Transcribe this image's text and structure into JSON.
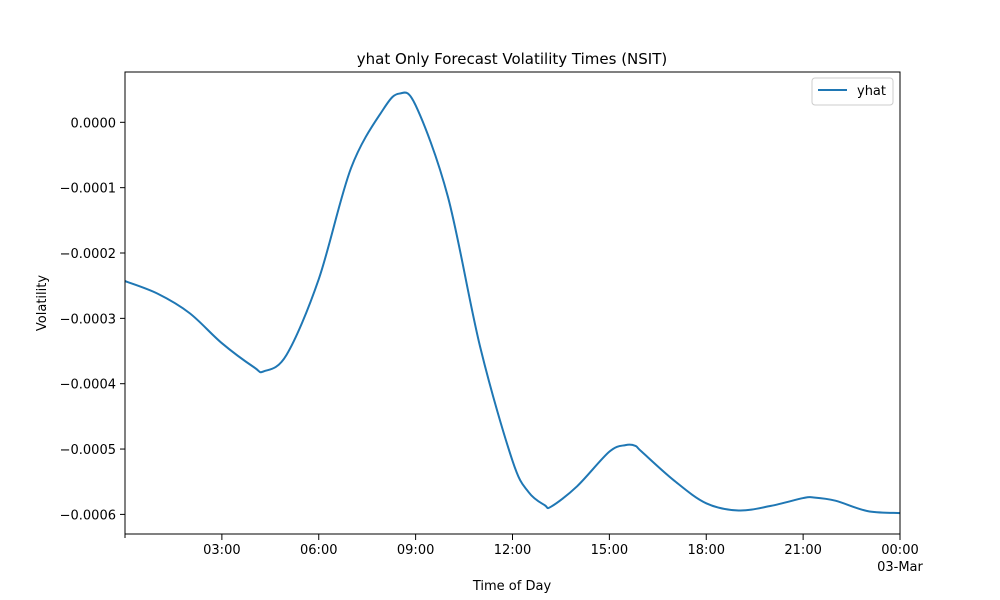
{
  "chart_data": {
    "type": "line",
    "title": "yhat Only Forecast Volatility Times (NSIT)",
    "xlabel": "Time of Day",
    "ylabel": "Volatility",
    "x_unit": "hours",
    "xlim": [
      0,
      24
    ],
    "ylim": [
      -0.00063,
      7.7e-05
    ],
    "x_ticks": [
      {
        "x": 3,
        "label": "03:00"
      },
      {
        "x": 6,
        "label": "06:00"
      },
      {
        "x": 9,
        "label": "09:00"
      },
      {
        "x": 12,
        "label": "12:00"
      },
      {
        "x": 15,
        "label": "15:00"
      },
      {
        "x": 18,
        "label": "18:00"
      },
      {
        "x": 21,
        "label": "21:00"
      },
      {
        "x": 24,
        "label": "00:00",
        "sublabel": "03-Mar"
      }
    ],
    "y_ticks": [
      {
        "y": 0.0,
        "label": "0.0000"
      },
      {
        "y": -0.0001,
        "label": "−0.0001"
      },
      {
        "y": -0.0002,
        "label": "−0.0002"
      },
      {
        "y": -0.0003,
        "label": "−0.0003"
      },
      {
        "y": -0.0004,
        "label": "−0.0004"
      },
      {
        "y": -0.0005,
        "label": "−0.0005"
      },
      {
        "y": -0.0006,
        "label": "−0.0006"
      }
    ],
    "grid": false,
    "legend": {
      "placement": "top-right"
    },
    "series": [
      {
        "name": "yhat",
        "color": "#1f77b4",
        "x": [
          0,
          1,
          2,
          3,
          4,
          4.3,
          5,
          6,
          7,
          8,
          8.5,
          9,
          10,
          11,
          12,
          12.5,
          13,
          13.2,
          14,
          15,
          15.5,
          15.8,
          16,
          17,
          18,
          19,
          20,
          21,
          21.3,
          22,
          23,
          24
        ],
        "y": [
          -0.000243,
          -0.000262,
          -0.000292,
          -0.000338,
          -0.000375,
          -0.000381,
          -0.000356,
          -0.00024,
          -7e-05,
          2e-05,
          4.4e-05,
          2.6e-05,
          -0.000114,
          -0.000344,
          -0.000518,
          -0.000566,
          -0.000586,
          -0.000588,
          -0.000557,
          -0.000504,
          -0.000494,
          -0.000495,
          -0.000504,
          -0.000548,
          -0.000583,
          -0.000594,
          -0.000587,
          -0.000575,
          -0.000574,
          -0.000579,
          -0.000595,
          -0.000598
        ]
      }
    ]
  }
}
